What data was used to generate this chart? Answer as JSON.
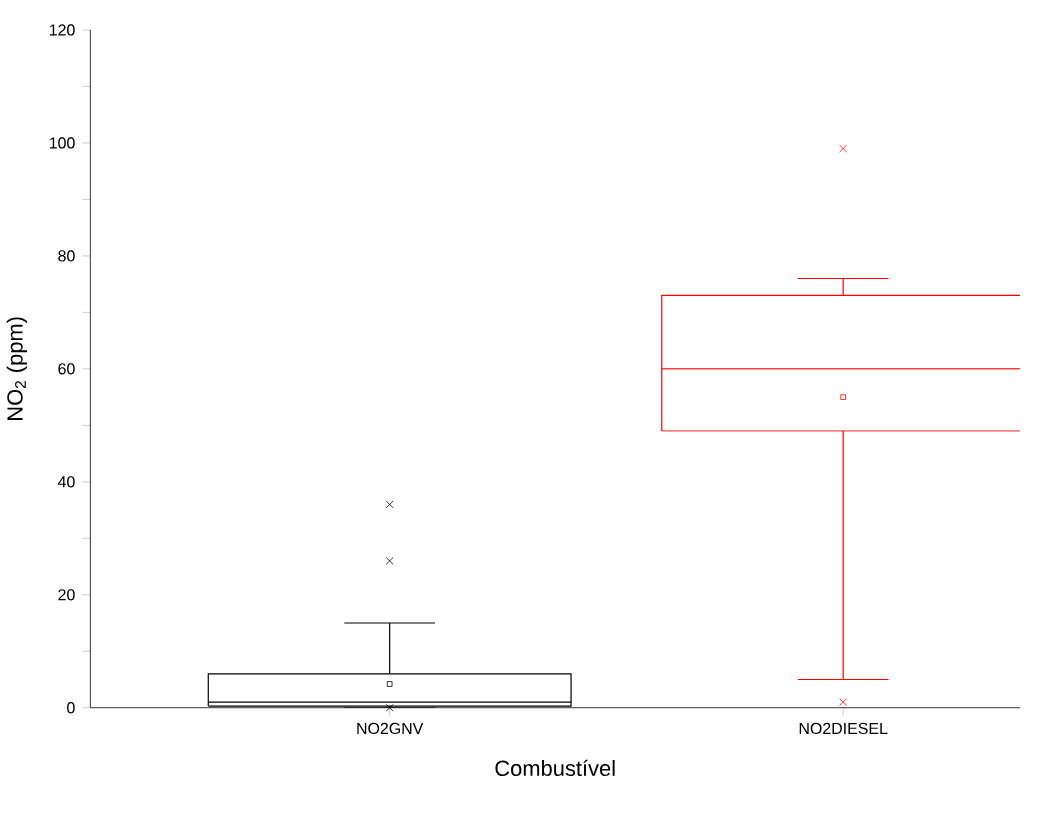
{
  "chart_data": {
    "type": "box",
    "xlabel": "Combustível",
    "ylabel": "NO$_{2}$ (ppm)",
    "categories": [
      "NO2GNV",
      "NO2DIESEL"
    ],
    "colors": [
      "#000000",
      "#ff0000"
    ],
    "boxes": [
      {
        "low": 0,
        "q1": 0.3,
        "median": 1,
        "q3": 6,
        "high": 15,
        "mean": 4.2,
        "outliers": [
          26,
          36,
          0
        ]
      },
      {
        "low": 5,
        "q1": 49,
        "median": 60,
        "q3": 73,
        "high": 76,
        "mean": 55,
        "outliers": [
          99,
          1
        ]
      }
    ],
    "ylim": [
      0,
      120
    ],
    "yticks": [
      0,
      {
        "value": 10,
        "label": null
      },
      20,
      {
        "value": 30,
        "label": null
      },
      40,
      {
        "value": 50,
        "label": null
      },
      60,
      {
        "value": 70,
        "label": null
      },
      80,
      {
        "value": 90,
        "label": null
      },
      100,
      {
        "value": 110,
        "label": null
      },
      120
    ],
    "grid": false,
    "marker": "square"
  }
}
